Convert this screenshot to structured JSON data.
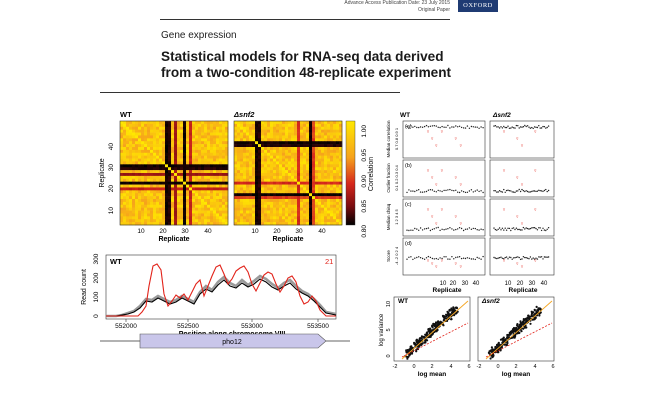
{
  "header": {
    "meta_line1": "Advance Access Publication Date: 23 July 2015",
    "meta_line2": "Original Paper",
    "publisher_badge": "OXFORD"
  },
  "article": {
    "section": "Gene expression",
    "title_line1": "Statistical models for RNA-seq data derived",
    "title_line2": "from a two-condition 48-replicate experiment"
  },
  "colors": {
    "heat_low": "#000000",
    "heat_mid": "#c0101a",
    "heat_high": "#ffe800",
    "trace_red": "#e2231a",
    "trace_black": "#000000",
    "gene_fill": "#c9c6ea",
    "fit_orange": "#f5a623"
  },
  "heatmaps": {
    "wt_title": "WT",
    "snf2_title": "Δsnf2",
    "ylabel": "Replicate",
    "xlabel": "Replicate",
    "wt_yticks": [
      "40",
      "30",
      "20",
      "10"
    ],
    "wt_xticks": [
      "10",
      "20",
      "30",
      "40"
    ],
    "snf2_xticks": [
      "10",
      "20",
      "30",
      "40"
    ],
    "colorbar_label": "Correlation",
    "colorbar_ticks": [
      "1.00",
      "0.95",
      "0.90",
      "0.85",
      "0.80"
    ]
  },
  "read_count": {
    "strain": "WT",
    "badge": "21",
    "ylabel": "Read count",
    "yticks": [
      "300",
      "200",
      "100",
      "0"
    ],
    "xticks": [
      "552000",
      "552500",
      "553000",
      "553500"
    ],
    "xlabel": "Position along chromosome VIII",
    "gene": "pho12"
  },
  "replicate_metrics": {
    "wt_title": "WT",
    "snf2_title": "Δsnf2",
    "panels": [
      {
        "tag": "(a)",
        "ylabel": "Median correlation",
        "yticks": "0.7 0.8 0.9 1"
      },
      {
        "tag": "(b)",
        "ylabel": "Outlier fraction",
        "yticks": "0.1 0.2 0.3 0.4"
      },
      {
        "tag": "(c)",
        "ylabel": "Median chisq",
        "yticks": "1 2 3 4 5"
      },
      {
        "tag": "(d)",
        "ylabel": "Score",
        "yticks": "-4 -2 0 2 4"
      }
    ],
    "xticks": [
      "10",
      "20",
      "30",
      "40"
    ],
    "xlabel": "Replicate"
  },
  "mean_variance": {
    "wt_title": "WT",
    "snf2_title": "Δsnf2",
    "ylabel": "log variance",
    "xlabel": "log mean",
    "xticks": [
      "-2",
      "0",
      "2",
      "4",
      "6"
    ],
    "yticks": [
      "10",
      "5",
      "0"
    ]
  }
}
